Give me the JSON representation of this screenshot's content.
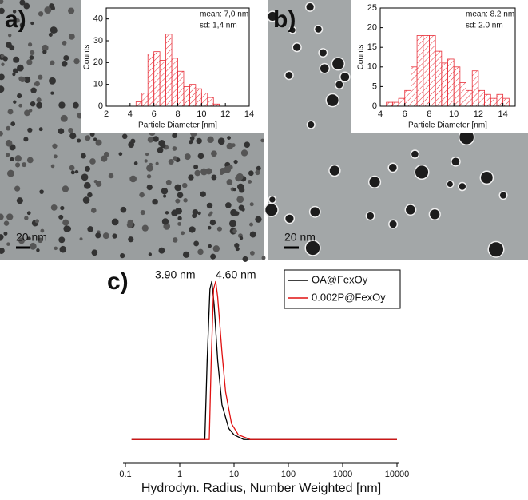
{
  "chart_data": [
    {
      "type": "histogram",
      "panel_label": "a)",
      "scale_bar": "20 nm",
      "xlabel": "Particle Diameter [nm]",
      "ylabel": "Counts",
      "annotations": [
        "mean: 7,0 nm",
        "sd:      1,4 nm"
      ],
      "bins": [
        4.5,
        5,
        5.5,
        6,
        6.5,
        7,
        7.5,
        8,
        8.5,
        9,
        9.5,
        10,
        10.5,
        11,
        11.5
      ],
      "values": [
        2,
        6,
        24,
        25,
        21,
        33,
        22,
        16,
        9,
        10,
        8,
        6,
        4,
        1
      ],
      "color": "#e8303a",
      "xlim": [
        2,
        14
      ],
      "xticks": [
        2,
        4,
        6,
        8,
        10,
        12,
        14
      ],
      "ylim": [
        0,
        45
      ],
      "yticks": [
        0,
        10,
        20,
        30,
        40
      ]
    },
    {
      "type": "histogram",
      "panel_label": "b)",
      "scale_bar": "20 nm",
      "xlabel": "Particle Diameter [nm]",
      "ylabel": "Counts",
      "annotations": [
        "mean: 8.2 nm",
        "sd:      2.0 nm"
      ],
      "bins": [
        4.5,
        5,
        5.5,
        6,
        6.5,
        7,
        7.5,
        8,
        8.5,
        9,
        9.5,
        10,
        10.5,
        11,
        11.5,
        12,
        12.5,
        13,
        13.5,
        14,
        14.5
      ],
      "values": [
        1,
        1,
        2,
        4,
        10,
        18,
        18,
        18,
        14,
        11,
        12,
        10,
        6,
        4,
        9,
        4,
        3,
        2,
        3,
        2
      ],
      "color": "#e8303a",
      "xlim": [
        4,
        15
      ],
      "xticks": [
        4,
        6,
        8,
        10,
        12,
        14
      ],
      "ylim": [
        0,
        25
      ],
      "yticks": [
        0,
        5,
        10,
        15,
        20,
        25
      ]
    },
    {
      "type": "line",
      "panel_label": "c)",
      "xlabel": "Hydrodyn. Radius, Number Weighted [nm]",
      "annotations": [
        {
          "text": "3.90 nm",
          "color": "#000000"
        },
        {
          "text": "4.60 nm",
          "color": "#e01010"
        }
      ],
      "xscale": "log",
      "xlim": [
        0.1,
        10000
      ],
      "xticks": [
        0.1,
        1,
        10,
        100,
        1000,
        10000
      ],
      "ylim": [
        -0.15,
        1
      ],
      "legend": "top-right",
      "series": [
        {
          "name": "OA@FexOy",
          "color": "#000000",
          "x": [
            0.13,
            2.9,
            3.2,
            3.6,
            3.9,
            4.3,
            5,
            6,
            8,
            10,
            15,
            10000
          ],
          "values": [
            0,
            0,
            0.5,
            0.95,
            1,
            0.85,
            0.5,
            0.22,
            0.07,
            0.03,
            0,
            0
          ]
        },
        {
          "name": "0.002P@FexOy",
          "color": "#e01010",
          "x": [
            0.13,
            3.5,
            3.8,
            4.2,
            4.6,
            5,
            6,
            7,
            9,
            12,
            20,
            10000
          ],
          "values": [
            0,
            0,
            0.5,
            0.95,
            1,
            0.9,
            0.55,
            0.3,
            0.1,
            0.03,
            0,
            0
          ]
        }
      ]
    }
  ]
}
